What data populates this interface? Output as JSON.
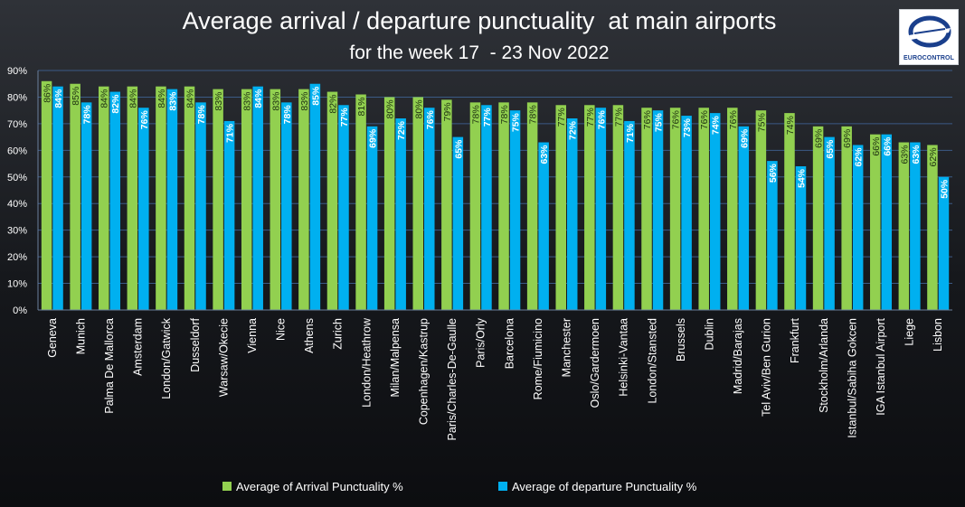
{
  "chart_data": {
    "type": "bar",
    "title": "Average arrival / departure punctuality  at main airports",
    "subtitle": "for the week 17  - 23 Nov 2022",
    "xlabel": "",
    "ylabel": "",
    "ylim": [
      0,
      90
    ],
    "yticks": [
      "0%",
      "10%",
      "20%",
      "30%",
      "40%",
      "50%",
      "60%",
      "70%",
      "80%",
      "90%"
    ],
    "grid": true,
    "legend_position": "bottom",
    "categories": [
      "Geneva",
      "Munich",
      "Palma De Mallorca",
      "Amsterdam",
      "London/Gatwick",
      "Dusseldorf",
      "Warsaw/Okecie",
      "Vienna",
      "Nice",
      "Athens",
      "Zurich",
      "London/Heathrow",
      "Milan/Malpensa",
      "Copenhagen/Kastrup",
      "Paris/Charles-De-Gaulle",
      "Paris/Orly",
      "Barcelona",
      "Rome/Fiumicino",
      "Manchester",
      "Oslo/Gardermoen",
      "Helsinki-Vantaa",
      "London/Stansted",
      "Brussels",
      "Dublin",
      "Madrid/Barajas",
      "Tel Aviv/Ben Gurion",
      "Frankfurt",
      "Stockholm/Arlanda",
      "Istanbul/Sabiha Gokcen",
      "IGA Istanbul Airport",
      "Liege",
      "Lisbon"
    ],
    "series": [
      {
        "name": "Average of Arrival Punctuality %",
        "color": "#92d050",
        "values": [
          86,
          85,
          84,
          84,
          84,
          84,
          83,
          83,
          83,
          83,
          82,
          81,
          80,
          80,
          79,
          78,
          78,
          78,
          77,
          77,
          77,
          76,
          76,
          76,
          76,
          75,
          74,
          69,
          69,
          66,
          63,
          62
        ],
        "labels": [
          "86%",
          "85%",
          "84%",
          "84%",
          "84%",
          "84%",
          "83%",
          "83%",
          "83%",
          "83%",
          "82%",
          "81%",
          "80%",
          "80%",
          "79%",
          "78%",
          "78%",
          "78%",
          "77%",
          "77%",
          "77%",
          "76%",
          "76%",
          "76%",
          "76%",
          "75%",
          "74%",
          "69%",
          "69%",
          "66%",
          "63%",
          "62%"
        ]
      },
      {
        "name": "Average of departure Punctuality %",
        "color": "#00b0f0",
        "values": [
          84,
          78,
          82,
          76,
          83,
          78,
          71,
          84,
          78,
          85,
          77,
          69,
          72,
          76,
          65,
          77,
          75,
          63,
          72,
          76,
          71,
          75,
          73,
          74,
          69,
          56,
          54,
          65,
          62,
          66,
          63,
          50
        ],
        "labels": [
          "84%",
          "78%",
          "82%",
          "76%",
          "83%",
          "78%",
          "71%",
          "84%",
          "78%",
          "85%",
          "77%",
          "69%",
          "72%",
          "76%",
          "65%",
          "77%",
          "75%",
          "63%",
          "72%",
          "76%",
          "71%",
          "75%",
          "73%",
          "74%",
          "69%",
          "56%",
          "54%",
          "65%",
          "62%",
          "66%",
          "63%",
          "50%"
        ]
      }
    ]
  },
  "logo": {
    "text": "EUROCONTROL",
    "brand_color": "#1a3f8c"
  }
}
